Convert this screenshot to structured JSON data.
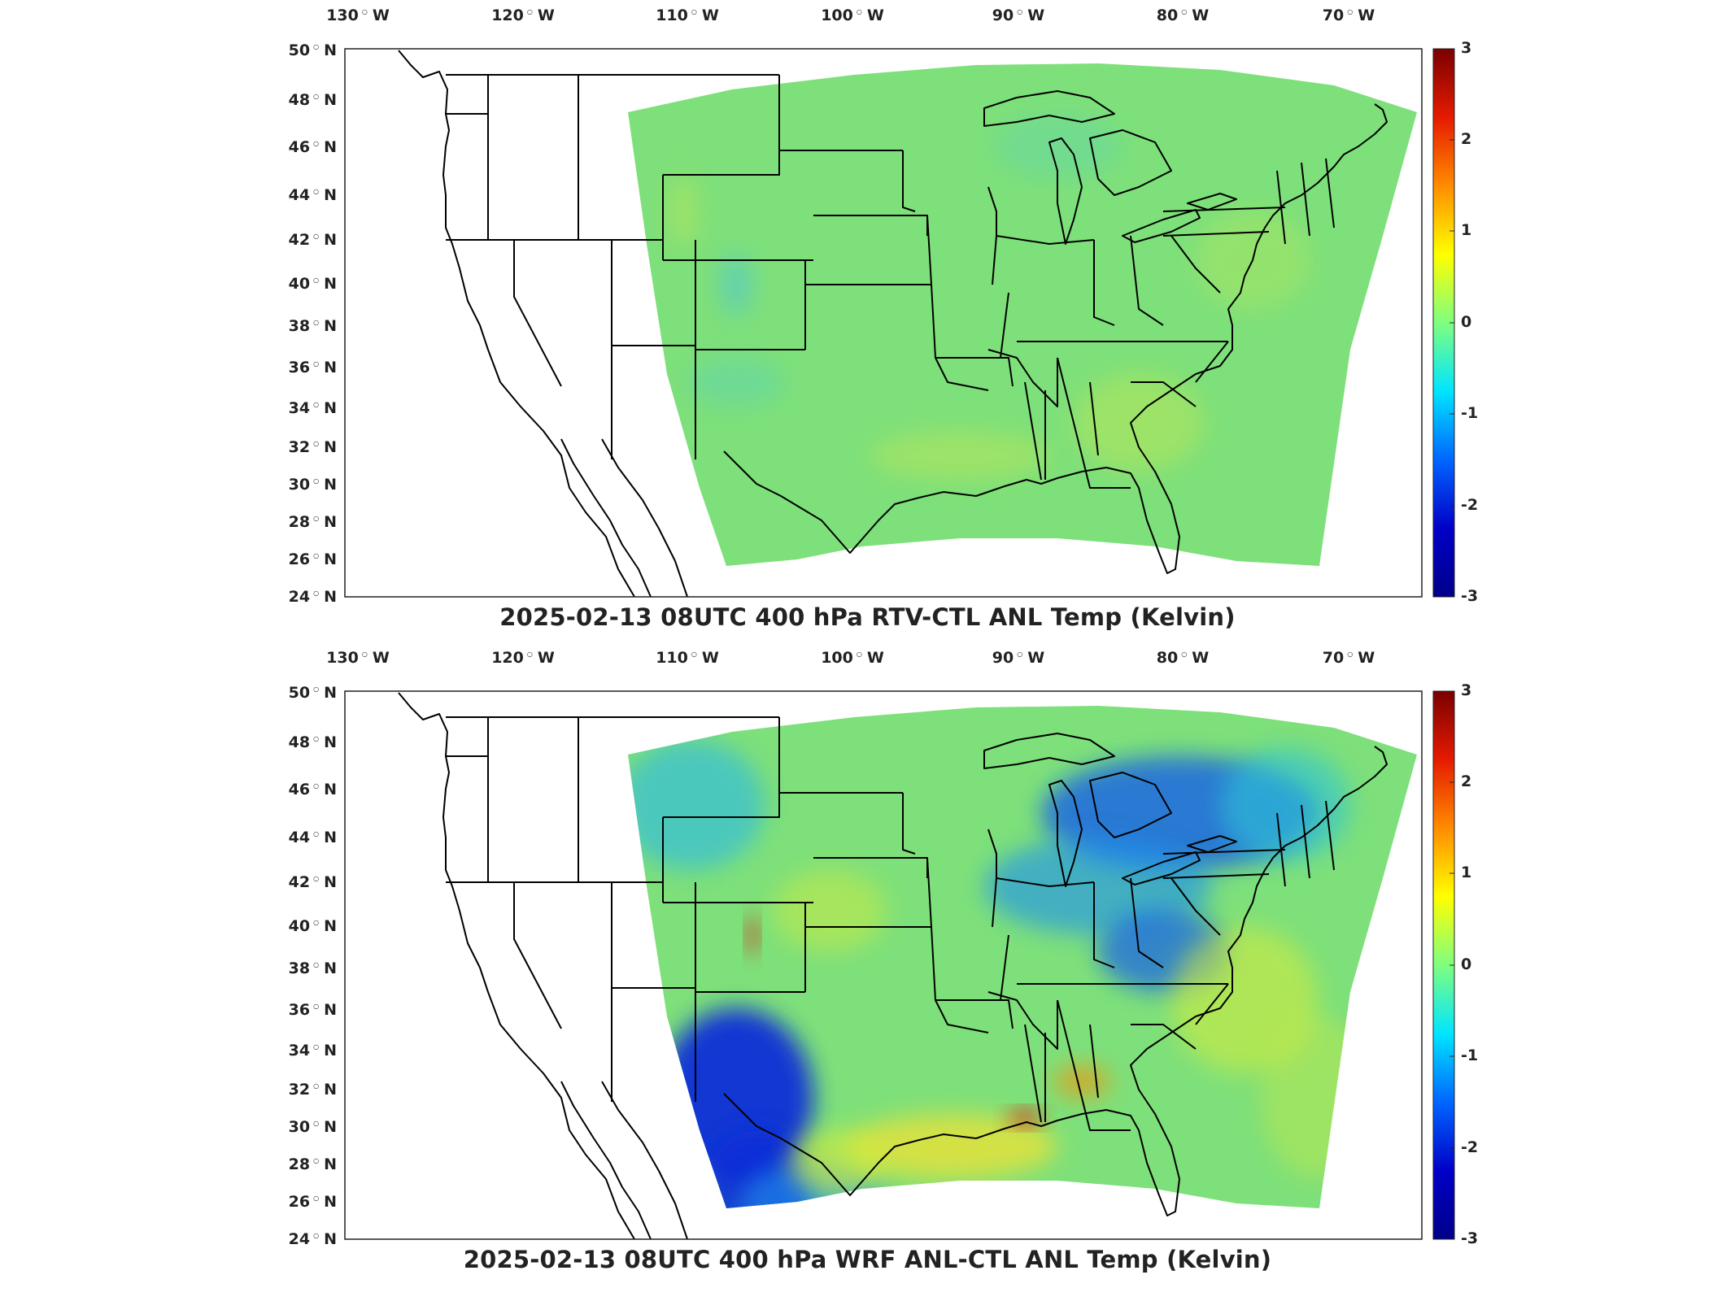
{
  "panels": [
    {
      "title": "2025-02-13 08UTC 400 hPa RTV-CTL ANL Temp (Kelvin)",
      "field": "rtv",
      "colors": {
        "base": "#7ee07a",
        "anomaly_low": "#2ec4d6",
        "anomaly_high": "#d6e94a"
      }
    },
    {
      "title": "2025-02-13 08UTC 400 hPa WRF ANL-CTL ANL Temp (Kelvin)",
      "field": "wrf",
      "colors": {
        "base": "#7ee07a",
        "anomaly_low": "#0a2fd8",
        "anomaly_high": "#f0e234"
      }
    }
  ],
  "axes": {
    "lon_labels": [
      {
        "deg": "130",
        "hem": "W"
      },
      {
        "deg": "120",
        "hem": "W"
      },
      {
        "deg": "110",
        "hem": "W"
      },
      {
        "deg": "100",
        "hem": "W"
      },
      {
        "deg": "90",
        "hem": "W"
      },
      {
        "deg": "80",
        "hem": "W"
      },
      {
        "deg": "70",
        "hem": "W"
      }
    ],
    "lat_labels": [
      {
        "deg": "50",
        "hem": "N"
      },
      {
        "deg": "48",
        "hem": "N"
      },
      {
        "deg": "46",
        "hem": "N"
      },
      {
        "deg": "44",
        "hem": "N"
      },
      {
        "deg": "42",
        "hem": "N"
      },
      {
        "deg": "40",
        "hem": "N"
      },
      {
        "deg": "38",
        "hem": "N"
      },
      {
        "deg": "36",
        "hem": "N"
      },
      {
        "deg": "34",
        "hem": "N"
      },
      {
        "deg": "32",
        "hem": "N"
      },
      {
        "deg": "30",
        "hem": "N"
      },
      {
        "deg": "28",
        "hem": "N"
      },
      {
        "deg": "26",
        "hem": "N"
      },
      {
        "deg": "24",
        "hem": "N"
      }
    ]
  },
  "colorbar": {
    "ticks": [
      "3",
      "2",
      "1",
      "0",
      "-1",
      "-2",
      "-3"
    ],
    "colors": [
      "#7a0000",
      "#e61a00",
      "#ff8c00",
      "#ffff00",
      "#7fff7f",
      "#00e5ff",
      "#0066ff",
      "#0000c8",
      "#00008a"
    ]
  }
}
